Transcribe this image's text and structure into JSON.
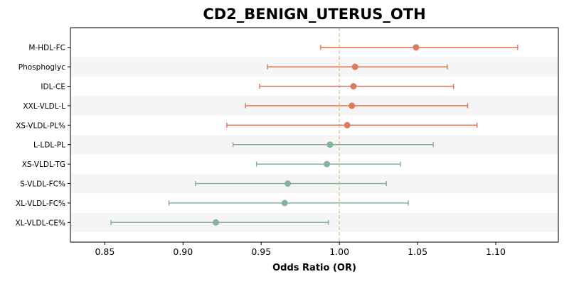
{
  "chart_data": {
    "type": "forest",
    "title": "CD2_BENIGN_UTERUS_OTH",
    "xlabel": "Odds Ratio (OR)",
    "ylabel": "",
    "xlim": [
      0.828,
      1.14
    ],
    "xticks": [
      0.85,
      0.9,
      0.95,
      1.0,
      1.05,
      1.1
    ],
    "xtick_labels": [
      "0.85",
      "0.90",
      "0.95",
      "1.00",
      "1.05",
      "1.10"
    ],
    "reference_line": 1.0,
    "grid": false,
    "row_shading": "alternating",
    "colors": {
      "positive": "#dc7a5e",
      "negative": "#84b59c",
      "reference": "#f2c48e",
      "shade": "#f5f5f5"
    },
    "rows": [
      {
        "label": "M-HDL-FC",
        "or": 1.049,
        "lower": 0.988,
        "upper": 1.114,
        "group": "positive"
      },
      {
        "label": "Phosphoglyc",
        "or": 1.01,
        "lower": 0.954,
        "upper": 1.069,
        "group": "positive"
      },
      {
        "label": "IDL-CE",
        "or": 1.009,
        "lower": 0.949,
        "upper": 1.073,
        "group": "positive"
      },
      {
        "label": "XXL-VLDL-L",
        "or": 1.008,
        "lower": 0.94,
        "upper": 1.082,
        "group": "positive"
      },
      {
        "label": "XS-VLDL-PL%",
        "or": 1.005,
        "lower": 0.928,
        "upper": 1.088,
        "group": "positive"
      },
      {
        "label": "L-LDL-PL",
        "or": 0.994,
        "lower": 0.932,
        "upper": 1.06,
        "group": "negative"
      },
      {
        "label": "XS-VLDL-TG",
        "or": 0.992,
        "lower": 0.947,
        "upper": 1.039,
        "group": "negative"
      },
      {
        "label": "S-VLDL-FC%",
        "or": 0.967,
        "lower": 0.908,
        "upper": 1.03,
        "group": "negative"
      },
      {
        "label": "XL-VLDL-FC%",
        "or": 0.965,
        "lower": 0.891,
        "upper": 1.044,
        "group": "negative"
      },
      {
        "label": "XL-VLDL-CE%",
        "or": 0.921,
        "lower": 0.854,
        "upper": 0.993,
        "group": "negative"
      }
    ]
  }
}
